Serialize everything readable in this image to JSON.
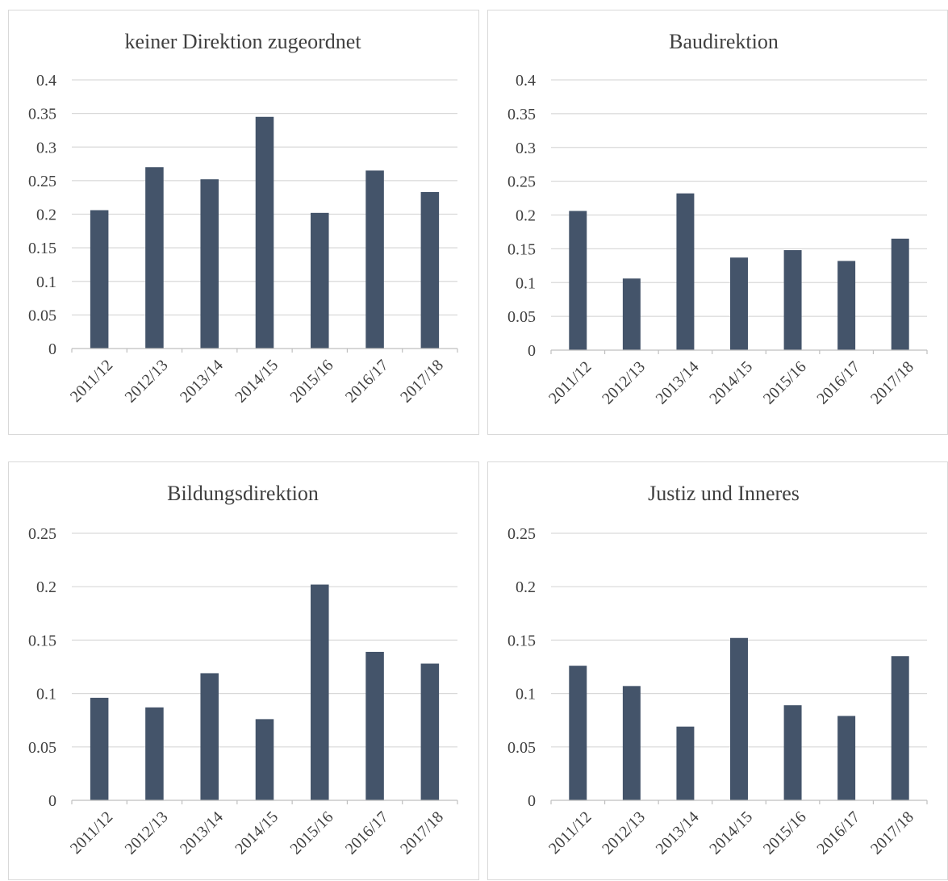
{
  "colors": {
    "bar": "#44546a",
    "grid": "#d9d9d9",
    "axis": "#bfbfbf",
    "text": "#404040",
    "panel_border": "#d9d9d9",
    "background": "#ffffff"
  },
  "chart_data": [
    {
      "type": "bar",
      "title": "keiner Direktion zugeordnet",
      "categories": [
        "2011/12",
        "2012/13",
        "2013/14",
        "2014/15",
        "2015/16",
        "2016/17",
        "2017/18"
      ],
      "values": [
        0.206,
        0.27,
        0.252,
        0.345,
        0.202,
        0.265,
        0.233
      ],
      "ylim": [
        0,
        0.4
      ],
      "yticks": [
        0,
        0.05,
        0.1,
        0.15,
        0.2,
        0.25,
        0.3,
        0.35,
        0.4
      ],
      "ytick_labels": [
        "0",
        "0.05",
        "0.1",
        "0.15",
        "0.2",
        "0.25",
        "0.3",
        "0.35",
        "0.4"
      ],
      "grid": true,
      "legend": "none"
    },
    {
      "type": "bar",
      "title": "Baudirektion",
      "categories": [
        "2011/12",
        "2012/13",
        "2013/14",
        "2014/15",
        "2015/16",
        "2016/17",
        "2017/18"
      ],
      "values": [
        0.206,
        0.106,
        0.232,
        0.137,
        0.148,
        0.132,
        0.165
      ],
      "ylim": [
        0,
        0.4
      ],
      "yticks": [
        0,
        0.05,
        0.1,
        0.15,
        0.2,
        0.25,
        0.3,
        0.35,
        0.4
      ],
      "ytick_labels": [
        "0",
        "0.05",
        "0.1",
        "0.15",
        "0.2",
        "0.25",
        "0.3",
        "0.35",
        "0.4"
      ],
      "grid": true,
      "legend": "none"
    },
    {
      "type": "bar",
      "title": "Bildungsdirektion",
      "categories": [
        "2011/12",
        "2012/13",
        "2013/14",
        "2014/15",
        "2015/16",
        "2016/17",
        "2017/18"
      ],
      "values": [
        0.096,
        0.087,
        0.119,
        0.076,
        0.202,
        0.139,
        0.128
      ],
      "ylim": [
        0,
        0.25
      ],
      "yticks": [
        0,
        0.05,
        0.1,
        0.15,
        0.2,
        0.25
      ],
      "ytick_labels": [
        "0",
        "0.05",
        "0.1",
        "0.15",
        "0.2",
        "0.25"
      ],
      "grid": true,
      "legend": "none"
    },
    {
      "type": "bar",
      "title": "Justiz und Inneres",
      "categories": [
        "2011/12",
        "2012/13",
        "2013/14",
        "2014/15",
        "2015/16",
        "2016/17",
        "2017/18"
      ],
      "values": [
        0.126,
        0.107,
        0.069,
        0.152,
        0.089,
        0.079,
        0.135
      ],
      "ylim": [
        0,
        0.25
      ],
      "yticks": [
        0,
        0.05,
        0.1,
        0.15,
        0.2,
        0.25
      ],
      "ytick_labels": [
        "0",
        "0.05",
        "0.1",
        "0.15",
        "0.2",
        "0.25"
      ],
      "grid": true,
      "legend": "none"
    }
  ]
}
